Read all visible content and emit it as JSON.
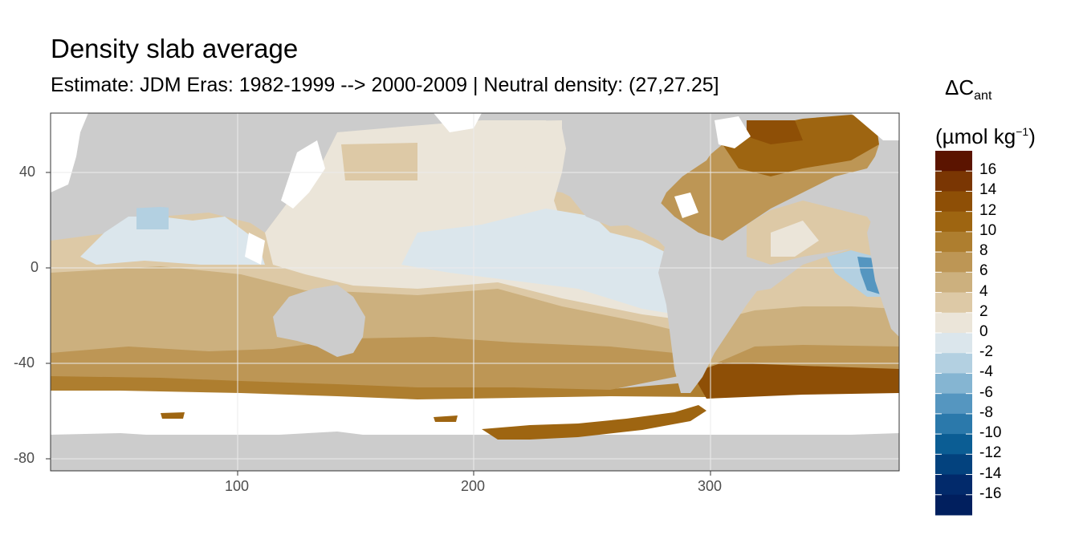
{
  "title": "Density slab average",
  "subtitle": "Estimate: JDM Eras: 1982-1999 --> 2000-2009 | Neutral density: (27,27.25]",
  "legend": {
    "title_main": "ΔC",
    "title_sub": "ant",
    "unit_prefix": "(µmol kg",
    "unit_sup": "−1",
    "unit_suffix": ")",
    "labels": [
      "16",
      "14",
      "12",
      "10",
      "8",
      "6",
      "4",
      "2",
      "0",
      "-2",
      "-4",
      "-6",
      "-8",
      "-10",
      "-12",
      "-14",
      "-16"
    ],
    "colors": [
      "#5b1400",
      "#7a3603",
      "#8e4f06",
      "#9e6511",
      "#ae7e2f",
      "#bd9655",
      "#ccb07e",
      "#ddc9a6",
      "#ebe5d9",
      "#dbe6ec",
      "#b3d0e1",
      "#85b5d2",
      "#5596c0",
      "#2b79ab",
      "#0b5d94",
      "#03427e",
      "#022a6b",
      "#011f5e"
    ]
  },
  "chart_data": {
    "type": "heatmap",
    "title": "Density slab average",
    "subtitle": "Estimate: JDM Eras: 1982-1999 --> 2000-2009 | Neutral density: (27,27.25]",
    "xlabel": "",
    "ylabel": "",
    "xlim": [
      20,
      380
    ],
    "ylim": [
      -85,
      65
    ],
    "x_ticks": [
      100,
      200,
      300
    ],
    "y_ticks": [
      40,
      0,
      -40,
      -80
    ],
    "grid": true,
    "legend_position": "right",
    "colorbar_breaks": [
      16,
      14,
      12,
      10,
      8,
      6,
      4,
      2,
      0,
      -2,
      -4,
      -6,
      -8,
      -10,
      -12,
      -14,
      -16
    ],
    "land_color": "#cccccc",
    "no_data_color": "#ffffff"
  }
}
